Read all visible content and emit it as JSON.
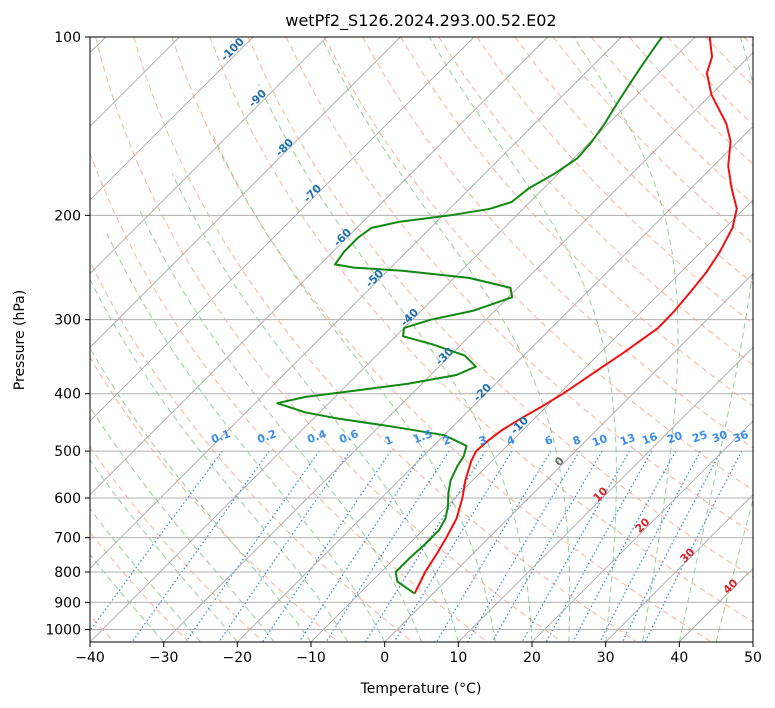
{
  "chart_data": {
    "type": "line",
    "subtype": "skew-t log-p diagram",
    "title": "wetPf2_S126.2024.293.00.52.E02",
    "xlabel": "Temperature (°C)",
    "ylabel": "Pressure (hPa)",
    "xlim": [
      -40,
      50
    ],
    "ylim_pressure": [
      1050,
      100
    ],
    "log_pressure_axis": true,
    "grid": true,
    "x_ticks": [
      "−40",
      "−30",
      "−20",
      "−10",
      "0",
      "10",
      "20",
      "30",
      "40",
      "50"
    ],
    "x_tick_values": [
      -40,
      -30,
      -20,
      -10,
      0,
      10,
      20,
      30,
      40,
      50
    ],
    "y_ticks": [
      "100",
      "200",
      "300",
      "400",
      "500",
      "600",
      "700",
      "800",
      "900",
      "1000"
    ],
    "y_tick_values": [
      100,
      200,
      300,
      400,
      500,
      600,
      700,
      800,
      900,
      1000
    ],
    "series": [
      {
        "color": "#ee1111",
        "points": [
          [
            870,
            -2.5
          ],
          [
            800,
            -4.0
          ],
          [
            740,
            -5.0
          ],
          [
            700,
            -5.8
          ],
          [
            650,
            -7.0
          ],
          [
            600,
            -9.0
          ],
          [
            560,
            -11.0
          ],
          [
            520,
            -12.8
          ],
          [
            500,
            -13.5
          ],
          [
            480,
            -13.3
          ],
          [
            460,
            -12.8
          ],
          [
            440,
            -11.8
          ],
          [
            420,
            -10.6
          ],
          [
            400,
            -9.5
          ],
          [
            370,
            -8.2
          ],
          [
            340,
            -6.8
          ],
          [
            310,
            -5.5
          ],
          [
            290,
            -5.6
          ],
          [
            270,
            -6.0
          ],
          [
            250,
            -6.5
          ],
          [
            230,
            -7.5
          ],
          [
            210,
            -9.0
          ],
          [
            195,
            -11.0
          ],
          [
            180,
            -14.5
          ],
          [
            165,
            -18.0
          ],
          [
            150,
            -21.0
          ],
          [
            140,
            -24.0
          ],
          [
            125,
            -30.0
          ],
          [
            115,
            -33.5
          ],
          [
            108,
            -35.0
          ],
          [
            100,
            -38.0
          ]
        ]
      },
      {
        "color": "#118811",
        "points": [
          [
            870,
            -2.5
          ],
          [
            850,
            -4.5
          ],
          [
            830,
            -6.5
          ],
          [
            800,
            -8.0
          ],
          [
            760,
            -8.0
          ],
          [
            720,
            -7.8
          ],
          [
            680,
            -7.8
          ],
          [
            650,
            -8.5
          ],
          [
            620,
            -9.8
          ],
          [
            590,
            -11.5
          ],
          [
            560,
            -13.0
          ],
          [
            530,
            -14.0
          ],
          [
            510,
            -14.5
          ],
          [
            500,
            -15.0
          ],
          [
            490,
            -15.5
          ],
          [
            470,
            -20.0
          ],
          [
            455,
            -28.0
          ],
          [
            440,
            -37.0
          ],
          [
            430,
            -42.0
          ],
          [
            415,
            -47.0
          ],
          [
            405,
            -44.0
          ],
          [
            395,
            -38.0
          ],
          [
            385,
            -32.0
          ],
          [
            372,
            -26.5
          ],
          [
            360,
            -25.0
          ],
          [
            345,
            -28.0
          ],
          [
            330,
            -34.0
          ],
          [
            320,
            -39.0
          ],
          [
            310,
            -40.0
          ],
          [
            300,
            -37.5
          ],
          [
            290,
            -33.0
          ],
          [
            275,
            -29.5
          ],
          [
            265,
            -31.0
          ],
          [
            255,
            -38.0
          ],
          [
            248,
            -48.0
          ],
          [
            245,
            -55.0
          ],
          [
            242,
            -58.0
          ],
          [
            230,
            -58.5
          ],
          [
            218,
            -58.5
          ],
          [
            210,
            -58.0
          ],
          [
            205,
            -55.0
          ],
          [
            200,
            -49.0
          ],
          [
            195,
            -44.5
          ],
          [
            190,
            -42.5
          ],
          [
            180,
            -42.0
          ],
          [
            170,
            -40.5
          ],
          [
            160,
            -39.5
          ],
          [
            150,
            -39.8
          ],
          [
            140,
            -40.5
          ],
          [
            130,
            -41.5
          ],
          [
            120,
            -42.5
          ],
          [
            112,
            -43.3
          ],
          [
            105,
            -44.0
          ],
          [
            100,
            -44.5
          ]
        ]
      }
    ],
    "dry_adiabat_labels": [
      "-100",
      "-90",
      "-80",
      "-70",
      "-60",
      "-50",
      "-40",
      "-30",
      "-20",
      "-10"
    ],
    "mixing_ratio_labels": [
      "0.1",
      "0.2",
      "0.4",
      "0.6",
      "1",
      "1.5",
      "2",
      "3",
      "4",
      "6",
      "8",
      "10",
      "13",
      "16",
      "20",
      "25",
      "30",
      "36"
    ],
    "moist_adiabat_labels": [
      "0",
      "10",
      "20",
      "30",
      "40"
    ],
    "colors": {
      "temperature": "#ee1111",
      "dewpoint": "#118811",
      "isotherm": "#aaaaaa",
      "dry_adiabat": "#f4a688",
      "moist_adiabat": "#8fc88f",
      "mixing_ratio": "#3388dd",
      "dry_label": "#1f6fb0",
      "mixing_label": "#3a8ee6",
      "moist_label": "#d62728",
      "zero_label": "#707070"
    }
  }
}
